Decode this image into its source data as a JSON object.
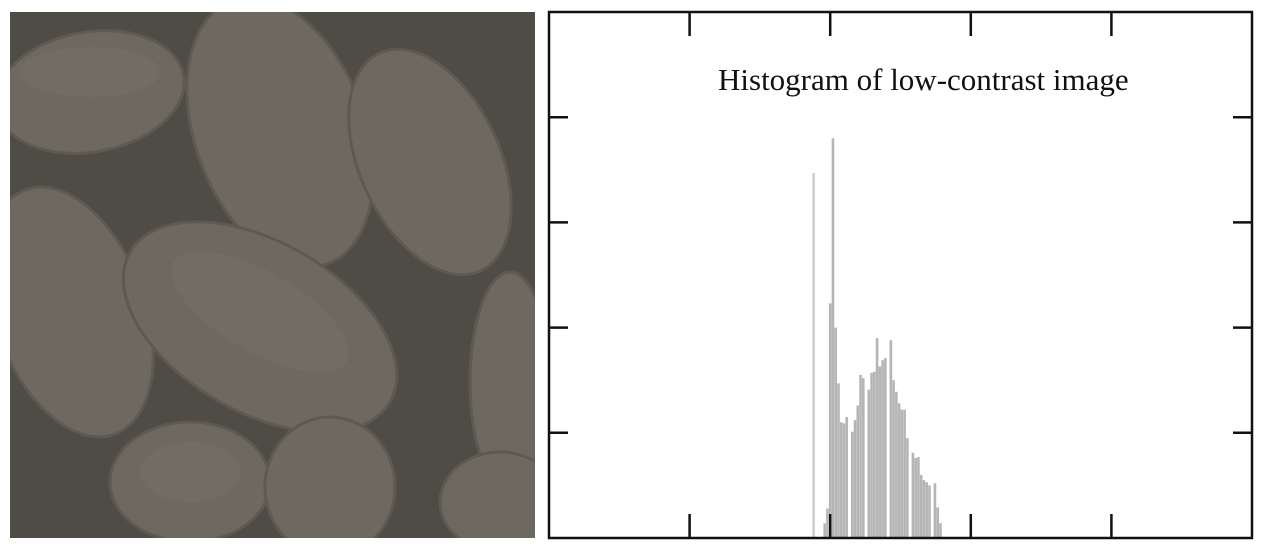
{
  "figure": {
    "image_label": "low-contrast pollen image",
    "colors": {
      "image_background": "#4f4c45",
      "pollen": "#6d6960",
      "pollen_highlight": "#7b776d",
      "bar": "#b5b5b5",
      "bar_light": "#cfcfcf",
      "axis": "#111111"
    }
  },
  "chart_data": {
    "type": "bar",
    "title": "Histogram of low-contrast image",
    "xlabel": "",
    "ylabel": "",
    "xlim": [
      0,
      255
    ],
    "ylim": [
      0,
      5
    ],
    "x_ticks": [
      51,
      102,
      153,
      204
    ],
    "y_ticks": [
      1,
      2,
      3,
      4
    ],
    "tick_labels_shown": false,
    "grid": false,
    "x": [
      96,
      100,
      101,
      102,
      103,
      104,
      105,
      106,
      107,
      108,
      110,
      111,
      112,
      113,
      114,
      116,
      117,
      118,
      119,
      120,
      121,
      122,
      124,
      125,
      126,
      127,
      128,
      129,
      130,
      132,
      133,
      134,
      135,
      136,
      137,
      138,
      140,
      141,
      142
    ],
    "values": [
      3.47,
      0.14,
      0.28,
      2.23,
      3.8,
      2.0,
      1.47,
      1.1,
      1.09,
      1.15,
      1.01,
      1.12,
      1.26,
      1.55,
      1.52,
      1.41,
      1.57,
      1.58,
      1.9,
      1.63,
      1.69,
      1.71,
      1.88,
      1.5,
      1.39,
      1.28,
      1.22,
      1.22,
      0.95,
      0.81,
      0.76,
      0.77,
      0.6,
      0.55,
      0.53,
      0.5,
      0.52,
      0.29,
      0.14
    ]
  }
}
